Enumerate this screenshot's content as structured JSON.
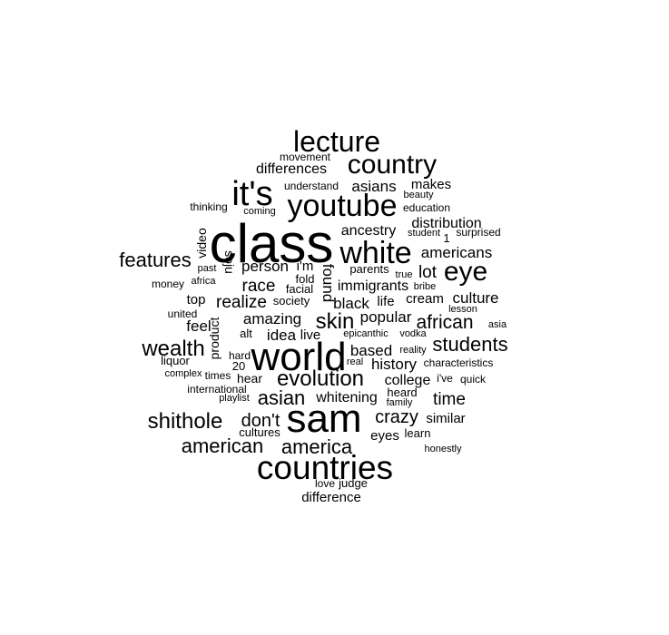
{
  "text_color": "#000000",
  "background_color": "#ffffff",
  "words": [
    "class",
    "sam",
    "world",
    "countries",
    "it's",
    "youtube",
    "lecture",
    "country",
    "white",
    "eye",
    "wealth",
    "shithole",
    "evolution",
    "features",
    "students",
    "american",
    "america",
    "skin",
    "asian",
    "african",
    "don't",
    "crazy",
    "time",
    "realize",
    "person",
    "race",
    "amazing",
    "asians",
    "differences",
    "ancestry",
    "distribution",
    "americans",
    "lot",
    "immigrants",
    "black",
    "popular",
    "culture",
    "based",
    "history",
    "college",
    "whitening",
    "similar",
    "feel",
    "idea",
    "live",
    "top",
    "eyes",
    "cream",
    "life",
    "found",
    "product",
    "video",
    "soju",
    "makes",
    "understand",
    "movement",
    "beauty",
    "education",
    "student",
    "1",
    "surprised",
    "thinking",
    "coming",
    "past",
    "africa",
    "money",
    "i'm",
    "fold",
    "parents",
    "true",
    "bribe",
    "facial",
    "society",
    "lesson",
    "united",
    "alt",
    "epicanthic",
    "vodka",
    "asia",
    "reality",
    "hard",
    "20",
    "liquor",
    "real",
    "characteristics",
    "complex",
    "times",
    "hear",
    "i've",
    "quick",
    "international",
    "playlist",
    "heard",
    "family",
    "cultures",
    "learn",
    "honestly",
    "love",
    "judge",
    "difference"
  ]
}
